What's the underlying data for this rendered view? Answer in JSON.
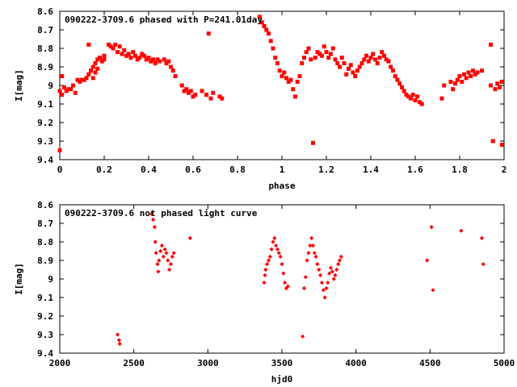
{
  "chart_data": [
    {
      "type": "scatter",
      "title": "090222-3709.6 phased with P=241.01day",
      "xlabel": "phase",
      "ylabel": "I[mag]",
      "xlim": [
        0,
        2
      ],
      "ylim": [
        8.6,
        9.4
      ],
      "y_inverted": true,
      "x_ticks": [
        "0",
        "0.2",
        "0.4",
        "0.6",
        "0.8",
        "1",
        "1.2",
        "1.4",
        "1.6",
        "1.8",
        "2"
      ],
      "y_ticks": [
        "8.6",
        "8.7",
        "8.8",
        "8.9",
        "9",
        "9.1",
        "9.2",
        "9.3",
        "9.4"
      ],
      "marker": "filled-square",
      "color": "#ff0000",
      "points": [
        [
          0.0,
          9.35
        ],
        [
          0.0,
          9.03
        ],
        [
          0.01,
          8.95
        ],
        [
          0.01,
          9.05
        ],
        [
          0.02,
          9.01
        ],
        [
          0.03,
          9.03
        ],
        [
          0.04,
          9.02
        ],
        [
          0.05,
          9.02
        ],
        [
          0.06,
          9.0
        ],
        [
          0.07,
          9.04
        ],
        [
          0.08,
          8.97
        ],
        [
          0.09,
          8.98
        ],
        [
          0.1,
          8.97
        ],
        [
          0.11,
          8.97
        ],
        [
          0.12,
          8.96
        ],
        [
          0.13,
          8.78
        ],
        [
          0.13,
          8.94
        ],
        [
          0.14,
          8.92
        ],
        [
          0.15,
          8.9
        ],
        [
          0.15,
          8.96
        ],
        [
          0.16,
          8.88
        ],
        [
          0.16,
          8.93
        ],
        [
          0.17,
          8.86
        ],
        [
          0.17,
          8.91
        ],
        [
          0.18,
          8.85
        ],
        [
          0.19,
          8.87
        ],
        [
          0.2,
          8.86
        ],
        [
          0.2,
          8.84
        ],
        [
          0.22,
          8.78
        ],
        [
          0.23,
          8.79
        ],
        [
          0.24,
          8.8
        ],
        [
          0.25,
          8.78
        ],
        [
          0.26,
          8.82
        ],
        [
          0.27,
          8.79
        ],
        [
          0.28,
          8.83
        ],
        [
          0.29,
          8.81
        ],
        [
          0.3,
          8.84
        ],
        [
          0.31,
          8.83
        ],
        [
          0.32,
          8.85
        ],
        [
          0.33,
          8.82
        ],
        [
          0.34,
          8.84
        ],
        [
          0.35,
          8.86
        ],
        [
          0.36,
          8.85
        ],
        [
          0.37,
          8.83
        ],
        [
          0.38,
          8.84
        ],
        [
          0.39,
          8.86
        ],
        [
          0.4,
          8.85
        ],
        [
          0.41,
          8.87
        ],
        [
          0.42,
          8.86
        ],
        [
          0.43,
          8.88
        ],
        [
          0.44,
          8.86
        ],
        [
          0.45,
          8.87
        ],
        [
          0.47,
          8.86
        ],
        [
          0.48,
          8.88
        ],
        [
          0.49,
          8.87
        ],
        [
          0.5,
          8.9
        ],
        [
          0.51,
          8.92
        ],
        [
          0.52,
          8.95
        ],
        [
          0.55,
          9.0
        ],
        [
          0.56,
          9.03
        ],
        [
          0.57,
          9.02
        ],
        [
          0.58,
          9.04
        ],
        [
          0.59,
          9.03
        ],
        [
          0.6,
          9.06
        ],
        [
          0.61,
          9.05
        ],
        [
          0.64,
          9.03
        ],
        [
          0.66,
          9.05
        ],
        [
          0.67,
          8.72
        ],
        [
          0.68,
          9.07
        ],
        [
          0.69,
          9.04
        ],
        [
          0.72,
          9.06
        ],
        [
          0.73,
          9.07
        ],
        [
          0.9,
          8.63
        ],
        [
          0.91,
          8.66
        ],
        [
          0.92,
          8.68
        ],
        [
          0.93,
          8.7
        ],
        [
          0.94,
          8.72
        ],
        [
          0.95,
          8.76
        ],
        [
          0.96,
          8.8
        ],
        [
          0.97,
          8.85
        ],
        [
          0.98,
          8.88
        ],
        [
          0.99,
          8.92
        ],
        [
          1.0,
          8.95
        ],
        [
          1.01,
          8.93
        ],
        [
          1.02,
          8.96
        ],
        [
          1.03,
          8.98
        ],
        [
          1.04,
          8.97
        ],
        [
          1.05,
          9.02
        ],
        [
          1.06,
          9.06
        ],
        [
          1.07,
          8.98
        ],
        [
          1.08,
          8.95
        ],
        [
          1.09,
          8.88
        ],
        [
          1.1,
          8.85
        ],
        [
          1.11,
          8.82
        ],
        [
          1.12,
          8.8
        ],
        [
          1.13,
          8.86
        ],
        [
          1.14,
          9.31
        ],
        [
          1.15,
          8.85
        ],
        [
          1.16,
          8.82
        ],
        [
          1.17,
          8.83
        ],
        [
          1.18,
          8.84
        ],
        [
          1.19,
          8.79
        ],
        [
          1.2,
          8.82
        ],
        [
          1.21,
          8.85
        ],
        [
          1.22,
          8.83
        ],
        [
          1.23,
          8.8
        ],
        [
          1.24,
          8.86
        ],
        [
          1.25,
          8.88
        ],
        [
          1.26,
          8.9
        ],
        [
          1.27,
          8.85
        ],
        [
          1.28,
          8.88
        ],
        [
          1.29,
          8.94
        ],
        [
          1.3,
          8.91
        ],
        [
          1.31,
          8.89
        ],
        [
          1.32,
          8.93
        ],
        [
          1.33,
          8.95
        ],
        [
          1.34,
          8.92
        ],
        [
          1.35,
          8.9
        ],
        [
          1.36,
          8.88
        ],
        [
          1.37,
          8.86
        ],
        [
          1.38,
          8.84
        ],
        [
          1.39,
          8.87
        ],
        [
          1.4,
          8.85
        ],
        [
          1.41,
          8.83
        ],
        [
          1.42,
          8.86
        ],
        [
          1.43,
          8.88
        ],
        [
          1.44,
          8.85
        ],
        [
          1.45,
          8.82
        ],
        [
          1.46,
          8.84
        ],
        [
          1.47,
          8.86
        ],
        [
          1.48,
          8.87
        ],
        [
          1.49,
          8.9
        ],
        [
          1.5,
          8.92
        ],
        [
          1.51,
          8.95
        ],
        [
          1.52,
          8.97
        ],
        [
          1.53,
          8.99
        ],
        [
          1.54,
          9.01
        ],
        [
          1.55,
          9.03
        ],
        [
          1.56,
          9.05
        ],
        [
          1.57,
          9.06
        ],
        [
          1.58,
          9.07
        ],
        [
          1.59,
          9.05
        ],
        [
          1.6,
          9.08
        ],
        [
          1.61,
          9.06
        ],
        [
          1.62,
          9.09
        ],
        [
          1.63,
          9.1
        ],
        [
          1.72,
          9.07
        ],
        [
          1.73,
          9.0
        ],
        [
          1.76,
          8.98
        ],
        [
          1.77,
          9.02
        ],
        [
          1.78,
          8.99
        ],
        [
          1.79,
          8.97
        ],
        [
          1.8,
          8.95
        ],
        [
          1.81,
          8.98
        ],
        [
          1.82,
          8.94
        ],
        [
          1.83,
          8.96
        ],
        [
          1.84,
          8.93
        ],
        [
          1.85,
          8.95
        ],
        [
          1.86,
          8.92
        ],
        [
          1.87,
          8.94
        ],
        [
          1.88,
          8.93
        ],
        [
          1.9,
          8.92
        ],
        [
          1.94,
          8.78
        ],
        [
          1.94,
          9.0
        ],
        [
          1.95,
          9.3
        ],
        [
          1.96,
          9.02
        ],
        [
          1.97,
          8.99
        ],
        [
          1.98,
          9.01
        ],
        [
          1.99,
          8.98
        ],
        [
          1.99,
          9.32
        ]
      ]
    },
    {
      "type": "scatter",
      "title": "090222-3709.6 not phased light curve",
      "xlabel": "hjd0",
      "ylabel": "I[mag]",
      "xlim": [
        2000,
        5000
      ],
      "ylim": [
        8.6,
        9.4
      ],
      "y_inverted": true,
      "x_ticks": [
        "2000",
        "2500",
        "3000",
        "3500",
        "4000",
        "4500",
        "5000"
      ],
      "y_ticks": [
        "8.6",
        "8.7",
        "8.8",
        "8.9",
        "9",
        "9.1",
        "9.2",
        "9.3",
        "9.4"
      ],
      "marker": "filled-diamond",
      "color": "#ff0000",
      "points": [
        [
          2390,
          9.3
        ],
        [
          2400,
          9.33
        ],
        [
          2405,
          9.35
        ],
        [
          2620,
          8.65
        ],
        [
          2630,
          8.68
        ],
        [
          2640,
          8.72
        ],
        [
          2645,
          8.8
        ],
        [
          2650,
          8.86
        ],
        [
          2660,
          8.92
        ],
        [
          2665,
          8.96
        ],
        [
          2670,
          8.9
        ],
        [
          2680,
          8.85
        ],
        [
          2690,
          8.82
        ],
        [
          2700,
          8.88
        ],
        [
          2710,
          8.84
        ],
        [
          2720,
          8.86
        ],
        [
          2730,
          8.9
        ],
        [
          2740,
          8.95
        ],
        [
          2750,
          8.92
        ],
        [
          2760,
          8.88
        ],
        [
          2770,
          8.86
        ],
        [
          2880,
          8.78
        ],
        [
          3380,
          9.02
        ],
        [
          3385,
          8.98
        ],
        [
          3390,
          8.95
        ],
        [
          3400,
          8.92
        ],
        [
          3410,
          8.9
        ],
        [
          3420,
          8.88
        ],
        [
          3430,
          8.84
        ],
        [
          3440,
          8.8
        ],
        [
          3450,
          8.78
        ],
        [
          3460,
          8.82
        ],
        [
          3470,
          8.84
        ],
        [
          3480,
          8.86
        ],
        [
          3490,
          8.88
        ],
        [
          3500,
          8.92
        ],
        [
          3510,
          8.97
        ],
        [
          3520,
          9.02
        ],
        [
          3530,
          9.05
        ],
        [
          3540,
          9.04
        ],
        [
          3640,
          9.31
        ],
        [
          3650,
          9.05
        ],
        [
          3660,
          8.99
        ],
        [
          3670,
          8.9
        ],
        [
          3680,
          8.86
        ],
        [
          3690,
          8.82
        ],
        [
          3700,
          8.78
        ],
        [
          3710,
          8.82
        ],
        [
          3720,
          8.86
        ],
        [
          3730,
          8.88
        ],
        [
          3740,
          8.92
        ],
        [
          3750,
          8.95
        ],
        [
          3760,
          8.98
        ],
        [
          3770,
          9.02
        ],
        [
          3780,
          9.06
        ],
        [
          3790,
          9.1
        ],
        [
          3800,
          9.05
        ],
        [
          3810,
          9.02
        ],
        [
          3820,
          8.97
        ],
        [
          3830,
          8.94
        ],
        [
          3840,
          8.96
        ],
        [
          3850,
          9.0
        ],
        [
          3860,
          8.98
        ],
        [
          3870,
          8.95
        ],
        [
          3880,
          8.92
        ],
        [
          3890,
          8.9
        ],
        [
          3900,
          8.88
        ],
        [
          4480,
          8.9
        ],
        [
          4510,
          8.72
        ],
        [
          4520,
          9.06
        ],
        [
          4710,
          8.74
        ],
        [
          4850,
          8.78
        ],
        [
          4860,
          8.92
        ]
      ]
    }
  ]
}
